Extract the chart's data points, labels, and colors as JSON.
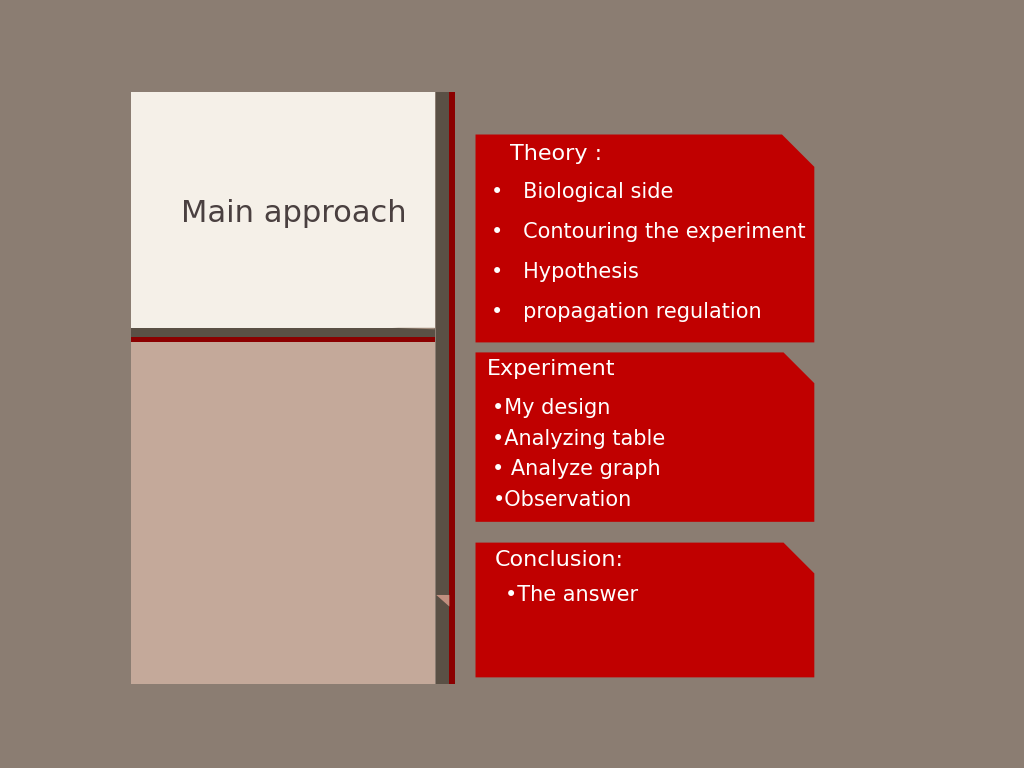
{
  "bg_color": "#8B7D72",
  "left_panel_top_color": "#F5F0E8",
  "left_panel_bottom_color": "#C4A99A",
  "left_panel_title": "Main approach",
  "left_panel_title_color": "#4A4040",
  "divider_h_dark": "#5A5045",
  "divider_h_red": "#8B0000",
  "vert_dark_color": "#5A5045",
  "vert_red_color": "#8B0000",
  "box_color": "#C00000",
  "text_color": "#FFFFFF",
  "box1_title": "Theory :",
  "box1_items": [
    "•   Biological side",
    "•   Contouring the experiment",
    "•   Hypothesis",
    "•   propagation regulation"
  ],
  "box2_title": "Experiment",
  "box2_items": [
    "•My design",
    "•Analyzing table",
    "• Analyze graph",
    "•Observation"
  ],
  "box3_title": "Conclusion:",
  "box3_items": [
    "•The answer"
  ],
  "fold_color": "#9E8878",
  "fold2_color": "#C09080"
}
